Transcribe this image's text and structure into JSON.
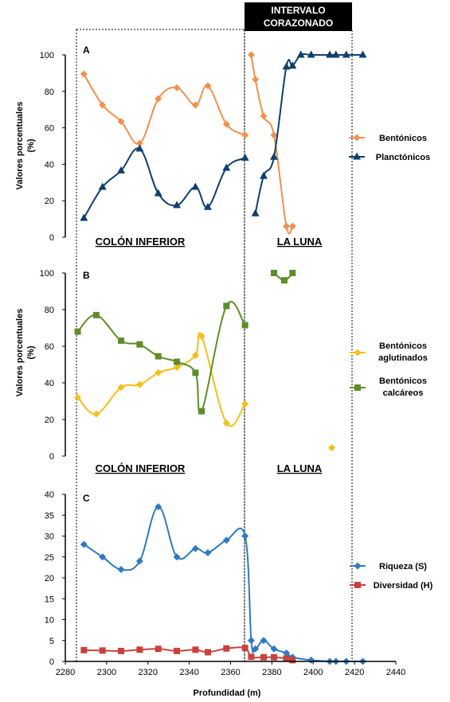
{
  "chart_data": {
    "type": "line",
    "x_label": "Profundidad (m)",
    "x_ticks": [
      "2280",
      "2300",
      "2320",
      "2340",
      "2360",
      "2380",
      "2400",
      "2420",
      "2440"
    ],
    "xlim": [
      2280,
      2440
    ],
    "interval_label_line1": "INTERVALO",
    "interval_label_line2": "CORAZONADO",
    "panels": [
      {
        "letter": "A",
        "ylabel_line1": "Valores porcentuales",
        "ylabel_line2": "(%)",
        "ylim": [
          0,
          100
        ],
        "y_ticks": [
          "0",
          "20",
          "40",
          "60",
          "80",
          "100"
        ],
        "zone_left": "COLÓN INFERIOR",
        "zone_right": "LA LUNA",
        "series": [
          {
            "name": "Bentónicos",
            "color": "#f0914f",
            "marker": "diamond",
            "segments": [
              [
                [
                  2289,
                  89.5
                ],
                [
                  2298,
                  72.5
                ],
                [
                  2307,
                  63.5
                ],
                [
                  2316,
                  51.5
                ],
                [
                  2325,
                  76
                ],
                [
                  2334,
                  82
                ],
                [
                  2343,
                  72.5
                ],
                [
                  2349,
                  83
                ],
                [
                  2358,
                  62
                ],
                [
                  2367,
                  56
                ]
              ],
              [
                [
                  2370,
                  100
                ],
                [
                  2372,
                  86.5
                ],
                [
                  2376,
                  66.5
                ],
                [
                  2381,
                  56
                ],
                [
                  2387,
                  6
                ],
                [
                  2390,
                  6
                ]
              ]
            ]
          },
          {
            "name": "Planctónicos",
            "color": "#0f3f6e",
            "marker": "triangle",
            "segments": [
              [
                [
                  2289,
                  10.5
                ],
                [
                  2298,
                  27.5
                ],
                [
                  2307,
                  36.5
                ],
                [
                  2316,
                  48.5
                ],
                [
                  2325,
                  24
                ],
                [
                  2334,
                  17.5
                ],
                [
                  2343,
                  27.5
                ],
                [
                  2349,
                  16.5
                ],
                [
                  2358,
                  38
                ],
                [
                  2367,
                  43.5
                ]
              ],
              [
                [
                  2372,
                  13
                ],
                [
                  2376,
                  33.5
                ],
                [
                  2381,
                  44
                ],
                [
                  2387,
                  93.5
                ],
                [
                  2390,
                  94
                ],
                [
                  2394,
                  100
                ],
                [
                  2399,
                  100
                ],
                [
                  2408,
                  100
                ],
                [
                  2411,
                  100
                ],
                [
                  2416,
                  100
                ],
                [
                  2424,
                  100
                ]
              ]
            ]
          }
        ]
      },
      {
        "letter": "B",
        "ylabel_line1": "Valores porcentuales",
        "ylabel_line2": "(%)",
        "ylim": [
          0,
          100
        ],
        "y_ticks": [
          "0",
          "20",
          "40",
          "60",
          "80",
          "100"
        ],
        "zone_left": "COLÓN INFERIOR",
        "zone_right": "LA LUNA",
        "series": [
          {
            "name": "Bentónicos aglutinados",
            "legend_line1": "Bentónicos",
            "legend_line2": "aglutinados",
            "color": "#f5be1a",
            "marker": "diamond",
            "segments": [
              [
                [
                  2286,
                  32
                ],
                [
                  2295,
                  23
                ],
                [
                  2307,
                  37.5
                ],
                [
                  2316,
                  39
                ],
                [
                  2325,
                  45.5
                ],
                [
                  2334,
                  48.5
                ],
                [
                  2343,
                  55
                ],
                [
                  2346,
                  65.5
                ],
                [
                  2358,
                  18
                ],
                [
                  2367,
                  28.5
                ]
              ],
              [
                [
                  2409,
                  4.5
                ]
              ]
            ]
          },
          {
            "name": "Bentónicos calcáreos",
            "legend_line1": "Bentónicos",
            "legend_line2": "calcáreos",
            "color": "#5f8c2b",
            "marker": "square",
            "segments": [
              [
                [
                  2286,
                  68
                ],
                [
                  2295,
                  77
                ],
                [
                  2307,
                  63
                ],
                [
                  2316,
                  61
                ],
                [
                  2325,
                  54.5
                ],
                [
                  2334,
                  51.5
                ],
                [
                  2343,
                  45.5
                ],
                [
                  2346,
                  24.5
                ],
                [
                  2358,
                  82
                ],
                [
                  2367,
                  71.5
                ]
              ],
              [
                [
                  2381,
                  100
                ],
                [
                  2386,
                  96
                ],
                [
                  2390,
                  100
                ]
              ]
            ]
          }
        ]
      },
      {
        "letter": "C",
        "ylim": [
          0,
          40
        ],
        "y_ticks": [
          "0",
          "5",
          "10",
          "15",
          "20",
          "25",
          "30",
          "35",
          "40"
        ],
        "series": [
          {
            "name": "Riqueza (S)",
            "color": "#2e7bbf",
            "marker": "diamond",
            "segments": [
              [
                [
                  2289,
                  28
                ],
                [
                  2298,
                  25
                ],
                [
                  2307,
                  22
                ],
                [
                  2316,
                  24
                ],
                [
                  2325,
                  37
                ],
                [
                  2334,
                  25
                ],
                [
                  2343,
                  27
                ],
                [
                  2349,
                  26
                ],
                [
                  2358,
                  29
                ],
                [
                  2367,
                  30
                ],
                [
                  2370,
                  5
                ],
                [
                  2372,
                  3
                ],
                [
                  2376,
                  5
                ],
                [
                  2381,
                  3
                ],
                [
                  2387,
                  2
                ],
                [
                  2390,
                  1
                ],
                [
                  2399,
                  0.3
                ],
                [
                  2408,
                  0
                ],
                [
                  2411,
                  0
                ],
                [
                  2416,
                  0
                ],
                [
                  2424,
                  0
                ]
              ]
            ]
          },
          {
            "name": "Diversidad (H)",
            "color": "#c8423e",
            "marker": "square",
            "segments": [
              [
                [
                  2289,
                  2.7
                ],
                [
                  2298,
                  2.6
                ],
                [
                  2307,
                  2.5
                ],
                [
                  2316,
                  2.8
                ],
                [
                  2325,
                  3
                ],
                [
                  2334,
                  2.5
                ],
                [
                  2343,
                  2.8
                ],
                [
                  2349,
                  2.2
                ],
                [
                  2358,
                  3.1
                ],
                [
                  2367,
                  3.2
                ],
                [
                  2370,
                  1.1
                ],
                [
                  2376,
                  1
                ],
                [
                  2381,
                  1
                ],
                [
                  2387,
                  0.7
                ],
                [
                  2390,
                  0.3
                ]
              ]
            ]
          }
        ]
      }
    ]
  }
}
